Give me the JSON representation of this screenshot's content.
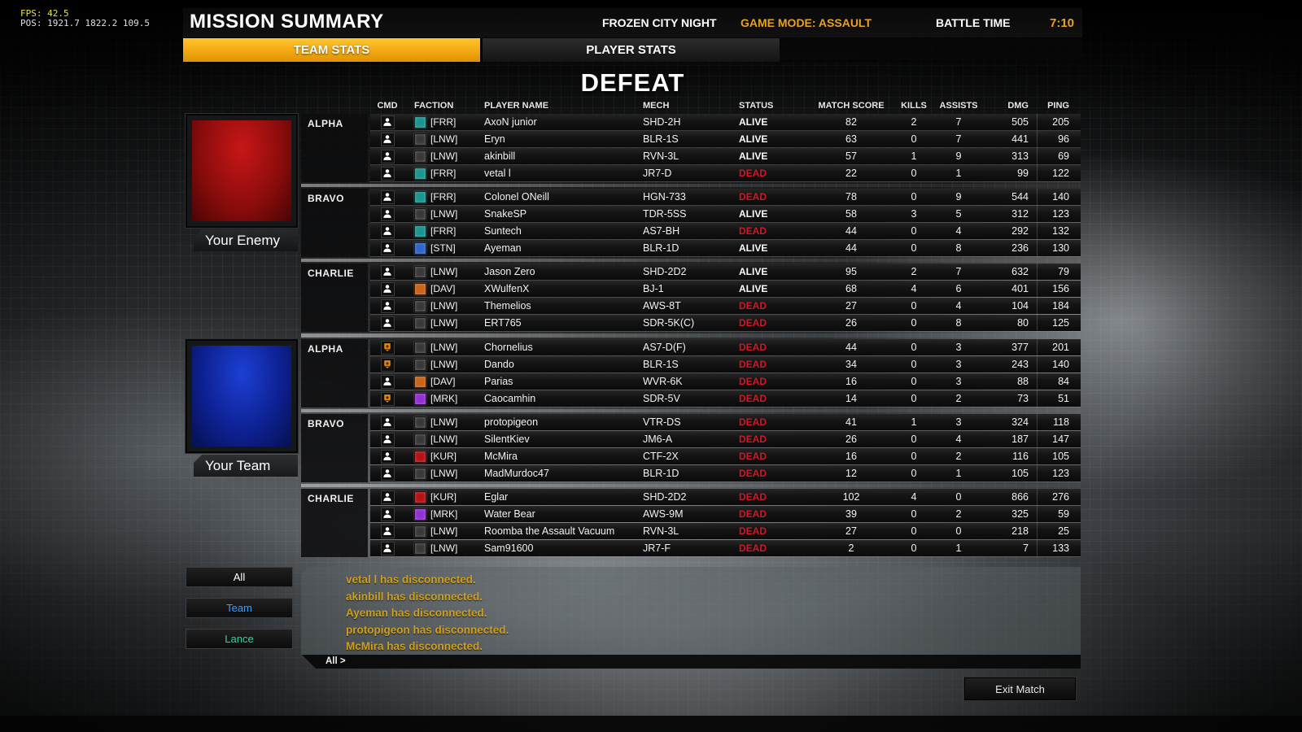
{
  "debug": {
    "fps": "FPS: 42.5",
    "pos": "POS: 1921.7  1822.2  109.5"
  },
  "header": {
    "title": "MISSION SUMMARY",
    "map": "FROZEN CITY NIGHT",
    "mode": "GAME MODE: ASSAULT",
    "battle_time_label": "BATTLE TIME",
    "battle_time": "7:10"
  },
  "tabs": [
    {
      "label": "TEAM STATS",
      "active": true
    },
    {
      "label": "PLAYER STATS",
      "active": false
    }
  ],
  "result": "DEFEAT",
  "columns": [
    "CMD",
    "FACTION",
    "PLAYER NAME",
    "MECH",
    "STATUS",
    "MATCH SCORE",
    "KILLS",
    "ASSISTS",
    "DMG",
    "PING"
  ],
  "faction_colors": {
    "FRR": "#1d9490",
    "LNW": "#3a3a3a",
    "STN": "#2f66c8",
    "DAV": "#c9641a",
    "KUR": "#b41318",
    "MRK": "#9232d2"
  },
  "colors": {
    "accent_gold": "#f2a813",
    "dead_red": "#d01824",
    "alive_white": "#ffffff",
    "chat_gold": "#cf9f1d",
    "team_blue": "#3b9eff",
    "lance_green": "#2fd6a0",
    "cmd_badge_orange": "#e08818",
    "enemy_flag_red": "#b01010",
    "team_flag_blue": "#12309e"
  },
  "teams": [
    {
      "name": "Your Enemy",
      "flag": [
        "#c81616",
        "#8a0c0c",
        "#4a0404"
      ],
      "lances": [
        {
          "name": "ALPHA",
          "players": [
            {
              "cmd": "pilot",
              "faction": "FRR",
              "name": "AxoN junior",
              "mech": "SHD-2H",
              "status": "ALIVE",
              "score": "82",
              "kills": "2",
              "assists": "7",
              "dmg": "505",
              "ping": "205"
            },
            {
              "cmd": "pilot",
              "faction": "LNW",
              "name": "Eryn",
              "mech": "BLR-1S",
              "status": "ALIVE",
              "score": "63",
              "kills": "0",
              "assists": "7",
              "dmg": "441",
              "ping": "96"
            },
            {
              "cmd": "pilot",
              "faction": "LNW",
              "name": "akinbill",
              "mech": "RVN-3L",
              "status": "ALIVE",
              "score": "57",
              "kills": "1",
              "assists": "9",
              "dmg": "313",
              "ping": "69"
            },
            {
              "cmd": "pilot",
              "faction": "FRR",
              "name": "vetal l",
              "mech": "JR7-D",
              "status": "DEAD",
              "score": "22",
              "kills": "0",
              "assists": "1",
              "dmg": "99",
              "ping": "122"
            }
          ]
        },
        {
          "name": "BRAVO",
          "players": [
            {
              "cmd": "pilot",
              "faction": "FRR",
              "name": "Colonel ONeill",
              "mech": "HGN-733",
              "status": "DEAD",
              "score": "78",
              "kills": "0",
              "assists": "9",
              "dmg": "544",
              "ping": "140"
            },
            {
              "cmd": "pilot",
              "faction": "LNW",
              "name": "SnakeSP",
              "mech": "TDR-5SS",
              "status": "ALIVE",
              "score": "58",
              "kills": "3",
              "assists": "5",
              "dmg": "312",
              "ping": "123"
            },
            {
              "cmd": "pilot",
              "faction": "FRR",
              "name": "Suntech",
              "mech": "AS7-BH",
              "status": "DEAD",
              "score": "44",
              "kills": "0",
              "assists": "4",
              "dmg": "292",
              "ping": "132"
            },
            {
              "cmd": "pilot",
              "faction": "STN",
              "name": "Ayeman",
              "mech": "BLR-1D",
              "status": "ALIVE",
              "score": "44",
              "kills": "0",
              "assists": "8",
              "dmg": "236",
              "ping": "130"
            }
          ]
        },
        {
          "name": "CHARLIE",
          "players": [
            {
              "cmd": "pilot",
              "faction": "LNW",
              "name": "Jason Zero",
              "mech": "SHD-2D2",
              "status": "ALIVE",
              "score": "95",
              "kills": "2",
              "assists": "7",
              "dmg": "632",
              "ping": "79"
            },
            {
              "cmd": "pilot",
              "faction": "DAV",
              "name": "XWulfenX",
              "mech": "BJ-1",
              "status": "ALIVE",
              "score": "68",
              "kills": "4",
              "assists": "6",
              "dmg": "401",
              "ping": "156"
            },
            {
              "cmd": "pilot",
              "faction": "LNW",
              "name": "Themelios",
              "mech": "AWS-8T",
              "status": "DEAD",
              "score": "27",
              "kills": "0",
              "assists": "4",
              "dmg": "104",
              "ping": "184"
            },
            {
              "cmd": "pilot",
              "faction": "LNW",
              "name": "ERT765",
              "mech": "SDR-5K(C)",
              "status": "DEAD",
              "score": "26",
              "kills": "0",
              "assists": "8",
              "dmg": "80",
              "ping": "125"
            }
          ]
        }
      ]
    },
    {
      "name": "Your Team",
      "flag": [
        "#1c3fd4",
        "#0d2090",
        "#061050"
      ],
      "lances": [
        {
          "name": "ALPHA",
          "players": [
            {
              "cmd": "badge",
              "faction": "LNW",
              "name": "Chornelius",
              "mech": "AS7-D(F)",
              "status": "DEAD",
              "score": "44",
              "kills": "0",
              "assists": "3",
              "dmg": "377",
              "ping": "201"
            },
            {
              "cmd": "badge",
              "faction": "LNW",
              "name": "Dando",
              "mech": "BLR-1S",
              "status": "DEAD",
              "score": "34",
              "kills": "0",
              "assists": "3",
              "dmg": "243",
              "ping": "140"
            },
            {
              "cmd": "pilot",
              "faction": "DAV",
              "name": "Parias",
              "mech": "WVR-6K",
              "status": "DEAD",
              "score": "16",
              "kills": "0",
              "assists": "3",
              "dmg": "88",
              "ping": "84"
            },
            {
              "cmd": "badge",
              "faction": "MRK",
              "name": "Caocamhin",
              "mech": "SDR-5V",
              "status": "DEAD",
              "score": "14",
              "kills": "0",
              "assists": "2",
              "dmg": "73",
              "ping": "51"
            }
          ]
        },
        {
          "name": "BRAVO",
          "players": [
            {
              "cmd": "pilot",
              "faction": "LNW",
              "name": "protopigeon",
              "mech": "VTR-DS",
              "status": "DEAD",
              "score": "41",
              "kills": "1",
              "assists": "3",
              "dmg": "324",
              "ping": "118"
            },
            {
              "cmd": "pilot",
              "faction": "LNW",
              "name": "SilentKiev",
              "mech": "JM6-A",
              "status": "DEAD",
              "score": "26",
              "kills": "0",
              "assists": "4",
              "dmg": "187",
              "ping": "147"
            },
            {
              "cmd": "pilot",
              "faction": "KUR",
              "name": "McMira",
              "mech": "CTF-2X",
              "status": "DEAD",
              "score": "16",
              "kills": "0",
              "assists": "2",
              "dmg": "116",
              "ping": "105"
            },
            {
              "cmd": "pilot",
              "faction": "LNW",
              "name": "MadMurdoc47",
              "mech": "BLR-1D",
              "status": "DEAD",
              "score": "12",
              "kills": "0",
              "assists": "1",
              "dmg": "105",
              "ping": "123"
            }
          ]
        },
        {
          "name": "CHARLIE",
          "players": [
            {
              "cmd": "pilot",
              "faction": "KUR",
              "name": "Eglar",
              "mech": "SHD-2D2",
              "status": "DEAD",
              "score": "102",
              "kills": "4",
              "assists": "0",
              "dmg": "866",
              "ping": "276"
            },
            {
              "cmd": "pilot",
              "faction": "MRK",
              "name": "Water Bear",
              "mech": "AWS-9M",
              "status": "DEAD",
              "score": "39",
              "kills": "0",
              "assists": "2",
              "dmg": "325",
              "ping": "59"
            },
            {
              "cmd": "pilot",
              "faction": "LNW",
              "name": "Roomba the Assault Vacuum",
              "mech": "RVN-3L",
              "status": "DEAD",
              "score": "27",
              "kills": "0",
              "assists": "0",
              "dmg": "218",
              "ping": "25"
            },
            {
              "cmd": "pilot",
              "faction": "LNW",
              "name": "Sam91600",
              "mech": "JR7-F",
              "status": "DEAD",
              "score": "2",
              "kills": "0",
              "assists": "1",
              "dmg": "7",
              "ping": "133"
            }
          ]
        }
      ]
    }
  ],
  "chat": {
    "filters": [
      {
        "label": "All",
        "color": "#ffffff"
      },
      {
        "label": "Team",
        "color": "#3b9eff"
      },
      {
        "label": "Lance",
        "color": "#2fd6a0"
      }
    ],
    "messages": [
      "vetal l has disconnected.",
      "akinbill has disconnected.",
      "Ayeman has disconnected.",
      "protopigeon has disconnected.",
      "McMira has disconnected."
    ],
    "input_prefix": "All >"
  },
  "exit_button": "Exit Match"
}
